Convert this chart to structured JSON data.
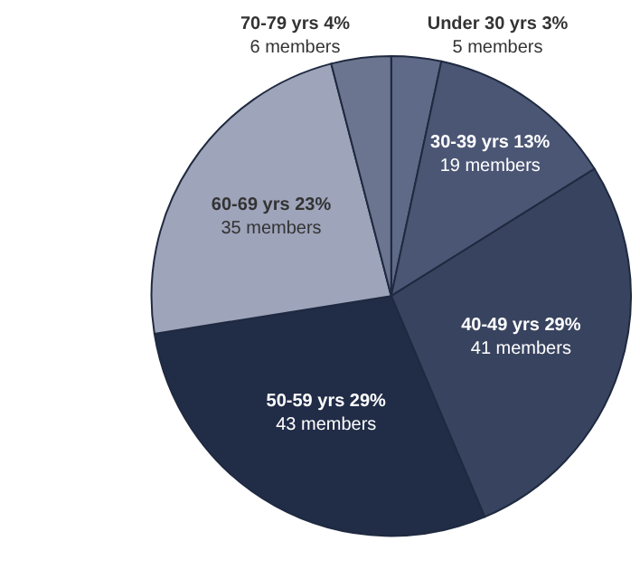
{
  "chart_data": {
    "type": "pie",
    "categories": [
      "Under 30 yrs",
      "30-39 yrs",
      "40-49 yrs",
      "50-59 yrs",
      "60-69 yrs",
      "70-79 yrs"
    ],
    "values": [
      5,
      19,
      41,
      43,
      35,
      6
    ],
    "value_labels": [
      "3%\n5 members",
      "13%\n19 members",
      "29%\n41 members",
      "29%\n43 members",
      "23%\n35 members",
      "4%\n6 members"
    ],
    "colors": [
      "#5f6a88",
      "#4b5675",
      "#38435f",
      "#212c47",
      "#9ea4ba",
      "#6b7590"
    ],
    "legend": false
  }
}
